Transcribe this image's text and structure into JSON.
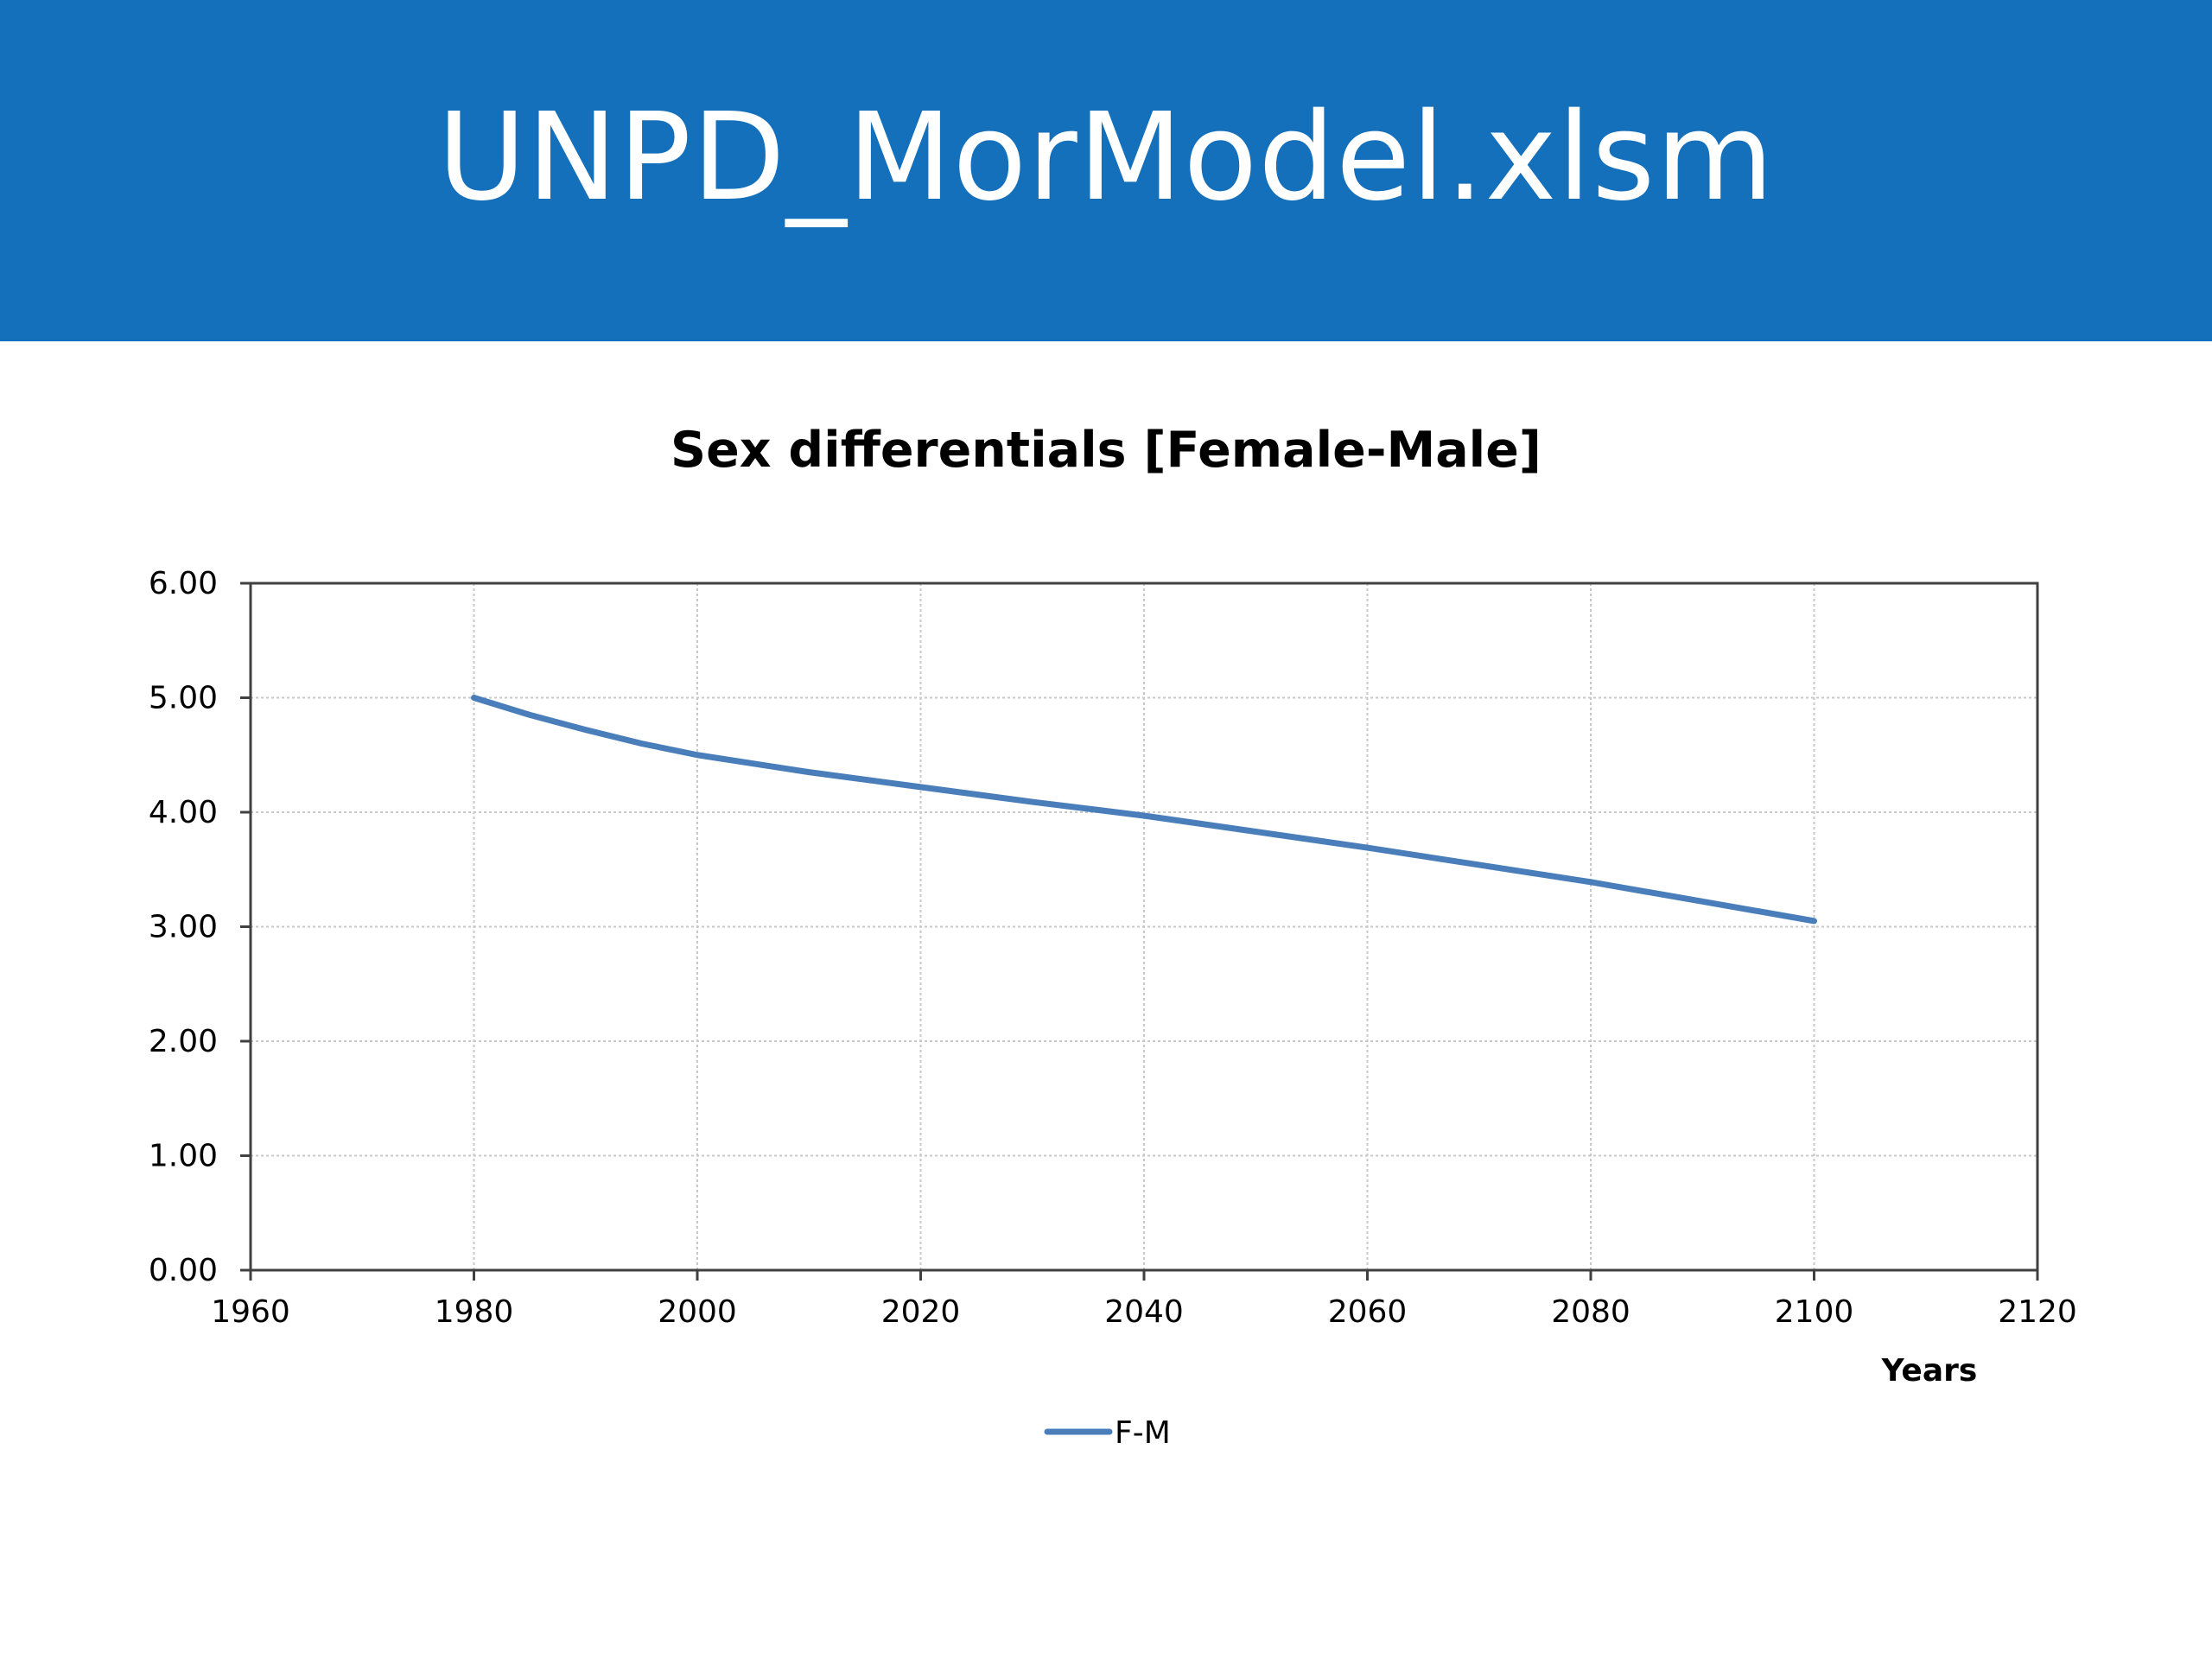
{
  "slide": {
    "title": "UNPD_MorModel.xlsm",
    "banner_color": "#1570bb"
  },
  "chart_data": {
    "type": "line",
    "title": "Sex differentials [Female-Male]",
    "xlabel": "Years",
    "ylabel": "",
    "xlim": [
      1960,
      2120
    ],
    "ylim": [
      0,
      6
    ],
    "x_ticks": [
      "1960",
      "1980",
      "2000",
      "2020",
      "2040",
      "2060",
      "2080",
      "2100",
      "2120"
    ],
    "y_ticks": [
      "0.00",
      "1.00",
      "2.00",
      "3.00",
      "4.00",
      "5.00",
      "6.00"
    ],
    "grid": true,
    "legend_position": "bottom",
    "series": [
      {
        "name": "F-M",
        "color": "#4a7ebb",
        "x": [
          1980,
          1985,
          1990,
          1995,
          2000,
          2010,
          2020,
          2030,
          2040,
          2050,
          2060,
          2070,
          2080,
          2090,
          2100
        ],
        "y": [
          5.0,
          4.85,
          4.72,
          4.6,
          4.5,
          4.35,
          4.22,
          4.09,
          3.97,
          3.83,
          3.69,
          3.54,
          3.39,
          3.22,
          3.05
        ]
      }
    ]
  }
}
